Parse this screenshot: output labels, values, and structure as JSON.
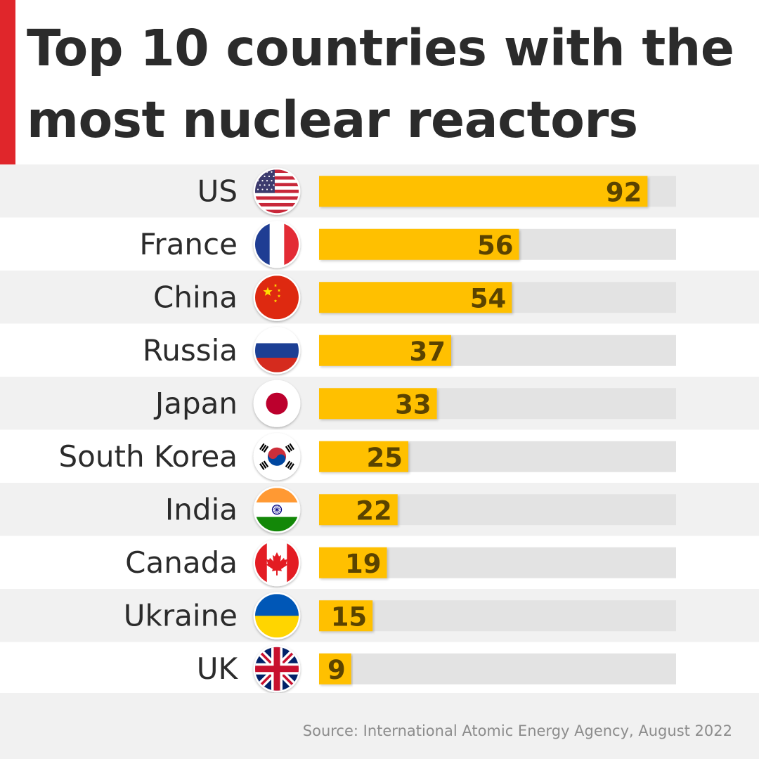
{
  "header": {
    "title": "Top 10 countries with the most nuclear reactors"
  },
  "chart_data": {
    "type": "bar",
    "orientation": "horizontal",
    "title": "Top 10 countries with the most nuclear reactors",
    "categories": [
      "US",
      "France",
      "China",
      "Russia",
      "Japan",
      "South Korea",
      "India",
      "Canada",
      "Ukraine",
      "UK"
    ],
    "values": [
      92,
      56,
      54,
      37,
      33,
      25,
      22,
      19,
      15,
      9
    ],
    "flags": [
      "us-flag-icon",
      "france-flag-icon",
      "china-flag-icon",
      "russia-flag-icon",
      "japan-flag-icon",
      "south-korea-flag-icon",
      "india-flag-icon",
      "canada-flag-icon",
      "ukraine-flag-icon",
      "uk-flag-icon"
    ],
    "xlim": [
      0,
      100
    ],
    "grid": false,
    "legend": "none",
    "colors": {
      "bar": "#ffc000",
      "track": "#e3e3e3",
      "value_label": "#5a4300",
      "row_alt": "#f1f1f1",
      "row": "#ffffff",
      "accent": "#e0262b"
    }
  },
  "footer": {
    "source": "Source: International Atomic Energy Agency, August 2022"
  }
}
